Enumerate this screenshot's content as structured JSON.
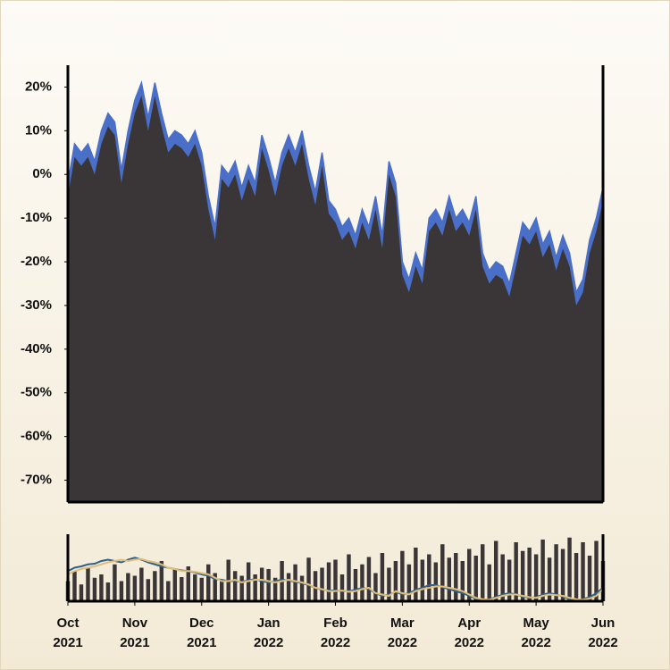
{
  "chart_data": [
    {
      "type": "area",
      "categories": [
        "Oct 2021",
        null,
        null,
        null,
        null,
        null,
        null,
        null,
        null,
        null,
        "Nov 2021",
        null,
        null,
        null,
        null,
        null,
        null,
        null,
        null,
        null,
        "Dec 2021",
        null,
        null,
        null,
        null,
        null,
        null,
        null,
        null,
        null,
        "Jan 2022",
        null,
        null,
        null,
        null,
        null,
        null,
        null,
        null,
        null,
        "Feb 2022",
        null,
        null,
        null,
        null,
        null,
        null,
        null,
        null,
        null,
        "Mar 2022",
        null,
        null,
        null,
        null,
        null,
        null,
        null,
        null,
        null,
        "Apr 2022",
        null,
        null,
        null,
        null,
        null,
        null,
        null,
        null,
        null,
        "May 2022",
        null,
        null,
        null,
        null,
        null,
        null,
        null,
        null,
        null,
        "Jun 2022"
      ],
      "series": [
        {
          "color": "#4a6fc8",
          "values": [
            -2,
            7,
            5,
            7,
            3,
            10,
            14,
            12,
            1,
            10,
            17,
            21,
            13,
            21,
            14,
            8,
            10,
            9,
            7,
            10,
            5,
            -5,
            -12,
            2,
            0,
            3,
            -3,
            2,
            -2,
            9,
            4,
            -2,
            5,
            9,
            5,
            10,
            2,
            -4,
            5,
            -6,
            -8,
            -12,
            -10,
            -14,
            -8,
            -12,
            -5,
            -14,
            3,
            -2,
            -20,
            -24,
            -18,
            -22,
            -10,
            -8,
            -11,
            -5,
            -10,
            -8,
            -11,
            -5,
            -18,
            -22,
            -20,
            -21,
            -25,
            -18,
            -11,
            -13,
            -10,
            -16,
            -13,
            -19,
            -14,
            -18,
            -27,
            -24,
            -15,
            -10,
            -3
          ]
        },
        {
          "color": "#3a3536",
          "values": [
            -5,
            4,
            2,
            4,
            0,
            7,
            11,
            9,
            -2,
            7,
            14,
            18,
            10,
            18,
            11,
            5,
            7,
            6,
            4,
            7,
            2,
            -8,
            -15,
            -1,
            -3,
            0,
            -6,
            -1,
            -5,
            6,
            1,
            -5,
            2,
            6,
            2,
            7,
            -1,
            -7,
            2,
            -9,
            -11,
            -15,
            -13,
            -17,
            -11,
            -15,
            -8,
            -17,
            0,
            -5,
            -23,
            -27,
            -21,
            -25,
            -13,
            -11,
            -14,
            -8,
            -13,
            -11,
            -14,
            -8,
            -21,
            -25,
            -23,
            -24,
            -28,
            -21,
            -14,
            -16,
            -13,
            -19,
            -16,
            -22,
            -17,
            -21,
            -30,
            -27,
            -18,
            -13,
            -6
          ]
        }
      ],
      "ylim": [
        -75,
        25
      ],
      "yticks": [
        {
          "value": 20,
          "label": "20%"
        },
        {
          "value": 10,
          "label": "10%"
        },
        {
          "value": 0,
          "label": "0%"
        },
        {
          "value": -10,
          "label": "-10%"
        },
        {
          "value": -20,
          "label": "-20%"
        },
        {
          "value": -30,
          "label": "-30%"
        },
        {
          "value": -40,
          "label": "-40%"
        },
        {
          "value": -50,
          "label": "-50%"
        },
        {
          "value": -60,
          "label": "-60%"
        },
        {
          "value": -70,
          "label": "-70%"
        }
      ]
    },
    {
      "type": "bar",
      "ylim": [
        0,
        100
      ],
      "series": [
        {
          "type": "bar",
          "color": "#3a3536",
          "values": [
            30,
            45,
            25,
            50,
            35,
            40,
            28,
            55,
            30,
            42,
            38,
            50,
            33,
            45,
            60,
            30,
            48,
            36,
            52,
            40,
            35,
            55,
            42,
            30,
            62,
            45,
            38,
            58,
            40,
            50,
            48,
            35,
            60,
            42,
            55,
            38,
            65,
            45,
            50,
            58,
            62,
            40,
            70,
            48,
            55,
            66,
            42,
            72,
            50,
            60,
            75,
            55,
            80,
            62,
            70,
            58,
            85,
            65,
            72,
            60,
            78,
            68,
            85,
            55,
            90,
            70,
            62,
            88,
            75,
            80,
            70,
            92,
            65,
            85,
            78,
            95,
            72,
            88,
            68,
            90,
            60
          ]
        },
        {
          "type": "line",
          "color": "#2f5f8a",
          "values": [
            45,
            50,
            52,
            55,
            56,
            60,
            62,
            60,
            58,
            62,
            65,
            62,
            58,
            55,
            52,
            50,
            48,
            46,
            45,
            43,
            40,
            38,
            33,
            32,
            30,
            30,
            29,
            31,
            33,
            30,
            28,
            30,
            32,
            31,
            29,
            27,
            24,
            20,
            17,
            16,
            16,
            15,
            15,
            17,
            20,
            18,
            12,
            8,
            10,
            14,
            10,
            12,
            17,
            20,
            24,
            24,
            21,
            18,
            15,
            12,
            8,
            4,
            2,
            3,
            6,
            10,
            12,
            10,
            7,
            5,
            6,
            10,
            12,
            10,
            7,
            3,
            2,
            3,
            6,
            12,
            20
          ]
        },
        {
          "type": "line",
          "color": "#e0bf78",
          "values": [
            40,
            45,
            48,
            50,
            52,
            55,
            58,
            60,
            62,
            60,
            62,
            63,
            60,
            58,
            55,
            50,
            48,
            45,
            45,
            44,
            42,
            40,
            35,
            30,
            30,
            32,
            28,
            30,
            32,
            32,
            30,
            28,
            30,
            32,
            30,
            28,
            25,
            20,
            18,
            15,
            15,
            16,
            14,
            15,
            18,
            20,
            12,
            10,
            8,
            15,
            12,
            10,
            15,
            18,
            20,
            22,
            22,
            20,
            18,
            15,
            10,
            5,
            3,
            2,
            5,
            8,
            10,
            10,
            8,
            6,
            5,
            8,
            10,
            9,
            8,
            5,
            3,
            2,
            4,
            8,
            18
          ]
        }
      ]
    }
  ]
}
